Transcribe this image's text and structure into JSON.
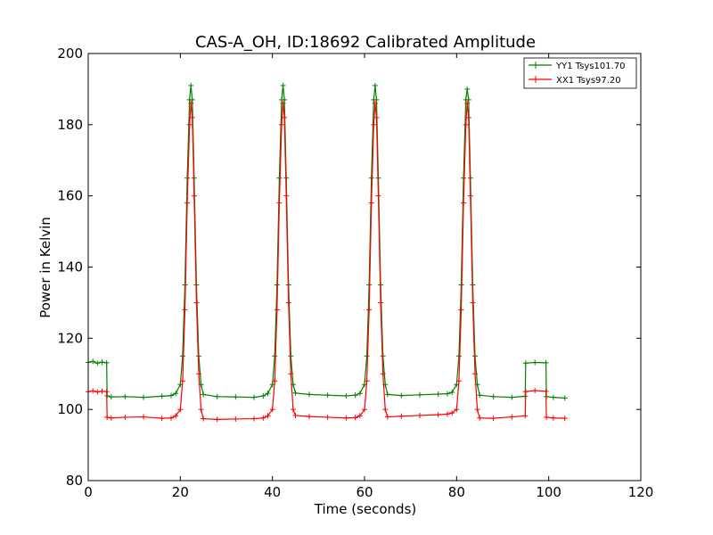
{
  "chart_data": {
    "type": "line",
    "title": "CAS-A_OH, ID:18692 Calibrated Amplitude",
    "xlabel": "Time (seconds)",
    "ylabel": "Power in Kelvin",
    "xlim": [
      0,
      120
    ],
    "ylim": [
      80,
      200
    ],
    "xticks": [
      0,
      20,
      40,
      60,
      80,
      100,
      120
    ],
    "yticks": [
      80,
      100,
      120,
      140,
      160,
      180,
      200
    ],
    "grid": false,
    "legend_position": "top-right",
    "marker": "+",
    "series": [
      {
        "name": "YY1 Tsys101.70",
        "color": "#008000",
        "x": [
          0,
          1,
          2,
          3,
          4,
          4.1,
          5,
          8,
          12,
          16,
          18,
          19,
          20,
          20.5,
          21,
          21.5,
          22,
          22.3,
          22.6,
          23,
          23.5,
          24,
          24.5,
          25,
          28,
          32,
          36,
          38,
          39,
          40,
          40.5,
          41,
          41.5,
          42,
          42.3,
          42.6,
          43,
          43.5,
          44,
          44.5,
          45,
          48,
          52,
          56,
          58,
          59,
          60,
          60.5,
          61,
          61.5,
          62,
          62.3,
          62.6,
          63,
          63.5,
          64,
          64.5,
          65,
          68,
          72,
          76,
          78,
          79,
          80,
          80.5,
          81,
          81.5,
          82,
          82.3,
          82.6,
          83,
          83.5,
          84,
          84.5,
          85,
          88,
          92,
          94.9,
          95,
          97,
          99.4,
          99.5,
          101,
          103.5
        ],
        "y": [
          113.2,
          113.5,
          113.0,
          113.3,
          113.1,
          103.8,
          103.5,
          103.6,
          103.4,
          103.7,
          103.9,
          104.5,
          107,
          115,
          135,
          165,
          187,
          191,
          187,
          165,
          135,
          115,
          107,
          104.2,
          103.6,
          103.5,
          103.4,
          103.8,
          104.5,
          107,
          115,
          135,
          165,
          187,
          191,
          187,
          165,
          135,
          115,
          107,
          104.6,
          104.2,
          104.0,
          103.8,
          104.0,
          104.5,
          107,
          115,
          135,
          165,
          187,
          191,
          187,
          165,
          135,
          115,
          107,
          104.2,
          103.9,
          104.1,
          104.3,
          104.4,
          104.8,
          107,
          115,
          135,
          165,
          187,
          190,
          187,
          165,
          135,
          115,
          107,
          104.0,
          103.6,
          103.4,
          103.7,
          113.0,
          113.2,
          113.1,
          103.6,
          103.4,
          103.2
        ]
      },
      {
        "name": "XX1 Tsys97.20",
        "color": "#ff0000",
        "x": [
          0,
          1,
          2,
          3,
          4,
          4.1,
          5,
          8,
          12,
          16,
          18,
          19,
          20,
          20.5,
          21,
          21.5,
          22,
          22.3,
          22.6,
          23,
          23.5,
          24,
          24.5,
          25,
          28,
          32,
          36,
          38,
          39,
          40,
          40.5,
          41,
          41.5,
          42,
          42.3,
          42.6,
          43,
          43.5,
          44,
          44.5,
          45,
          48,
          52,
          56,
          58,
          59,
          60,
          60.5,
          61,
          61.5,
          62,
          62.3,
          62.6,
          63,
          63.5,
          64,
          64.5,
          65,
          68,
          72,
          76,
          78,
          79,
          80,
          80.5,
          81,
          81.5,
          82,
          82.3,
          82.6,
          83,
          83.5,
          84,
          84.5,
          85,
          88,
          92,
          94.9,
          95,
          97,
          99.4,
          99.5,
          101,
          103.5
        ],
        "y": [
          105.0,
          105.2,
          104.9,
          105.1,
          105.0,
          97.8,
          97.6,
          97.8,
          97.9,
          97.5,
          97.6,
          98.2,
          100,
          108,
          128,
          158,
          180,
          186,
          182,
          160,
          130,
          110,
          100,
          97.4,
          97.2,
          97.3,
          97.4,
          97.6,
          98.2,
          100,
          108,
          128,
          158,
          180,
          186,
          182,
          160,
          130,
          110,
          100,
          98.3,
          98.0,
          97.8,
          97.6,
          97.7,
          98.2,
          100,
          108,
          128,
          158,
          180,
          186,
          182,
          160,
          130,
          110,
          100,
          97.9,
          98.1,
          98.3,
          98.5,
          98.7,
          99,
          100,
          108,
          128,
          158,
          180,
          186,
          182,
          160,
          130,
          110,
          100,
          97.6,
          97.5,
          97.9,
          98.2,
          105.0,
          105.3,
          105.1,
          97.8,
          97.6,
          97.5
        ]
      }
    ]
  }
}
